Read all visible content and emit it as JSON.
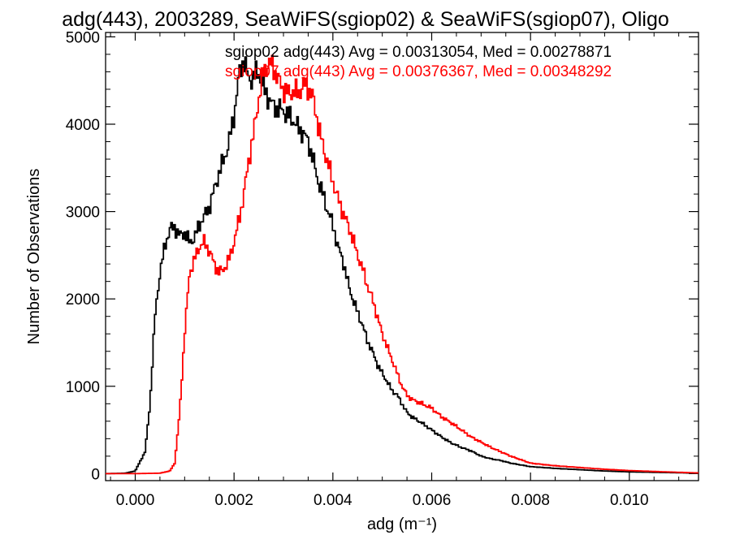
{
  "chart_data": {
    "type": "line",
    "title": "adg(443), 2003289, SeaWiFS(sgiop02) & SeaWiFS(sgiop07), Oligo",
    "xlabel": "adg (m⁻¹)",
    "ylabel": "Number of Observations",
    "xlim": [
      -0.0006,
      0.0114
    ],
    "ylim": [
      -80,
      5050
    ],
    "xticks": [
      0.0,
      0.002,
      0.004,
      0.006,
      0.008,
      0.01
    ],
    "xtick_labels": [
      "0.000",
      "0.002",
      "0.004",
      "0.006",
      "0.008",
      "0.010"
    ],
    "yticks": [
      0,
      1000,
      2000,
      3000,
      4000,
      5000
    ],
    "ytick_labels": [
      "0",
      "1000",
      "2000",
      "3000",
      "4000",
      "5000"
    ],
    "legend_placement": "top-right",
    "series": [
      {
        "name": "sgiop02",
        "legend": "sgiop02 adg(443) Avg = 0.00313054, Med = 0.00278871",
        "color": "#000000",
        "x": [
          -0.0006,
          -0.0002,
          0.0,
          0.0002,
          0.0003,
          0.0004,
          0.0005,
          0.0006,
          0.0007,
          0.0008,
          0.0009,
          0.001,
          0.0011,
          0.0012,
          0.0013,
          0.0014,
          0.0015,
          0.0016,
          0.0017,
          0.0018,
          0.0019,
          0.002,
          0.0021,
          0.0022,
          0.0023,
          0.0024,
          0.0025,
          0.0026,
          0.0027,
          0.0028,
          0.0029,
          0.003,
          0.0031,
          0.0032,
          0.0033,
          0.0034,
          0.0035,
          0.0036,
          0.0037,
          0.0038,
          0.0039,
          0.004,
          0.0041,
          0.0042,
          0.0043,
          0.0044,
          0.0045,
          0.0046,
          0.0047,
          0.0048,
          0.0049,
          0.005,
          0.0051,
          0.0052,
          0.0053,
          0.0054,
          0.0055,
          0.0056,
          0.0058,
          0.006,
          0.0062,
          0.0064,
          0.0066,
          0.0068,
          0.007,
          0.0072,
          0.0074,
          0.0076,
          0.0078,
          0.008,
          0.0085,
          0.009,
          0.0095,
          0.01,
          0.0105,
          0.011,
          0.0114
        ],
        "y": [
          0,
          5,
          30,
          250,
          800,
          1800,
          2300,
          2600,
          2800,
          2820,
          2720,
          2760,
          2650,
          2700,
          2850,
          2950,
          3050,
          3250,
          3450,
          3600,
          3800,
          4100,
          4550,
          4750,
          4500,
          4550,
          4600,
          4400,
          4300,
          4200,
          4180,
          4150,
          4100,
          4050,
          3950,
          3900,
          3800,
          3600,
          3350,
          3200,
          3000,
          2850,
          2600,
          2450,
          2200,
          2000,
          1850,
          1700,
          1520,
          1400,
          1250,
          1150,
          1050,
          950,
          900,
          800,
          700,
          650,
          580,
          500,
          420,
          350,
          300,
          260,
          200,
          170,
          150,
          120,
          100,
          80,
          60,
          45,
          30,
          20,
          15,
          10,
          5
        ]
      },
      {
        "name": "sgiop07",
        "legend": "sgiop07 adg(443) Avg = 0.00376367, Med = 0.00348292",
        "color": "#ff0000",
        "x": [
          -0.0006,
          0.0,
          0.0005,
          0.0007,
          0.0008,
          0.0009,
          0.001,
          0.0011,
          0.0012,
          0.0013,
          0.0014,
          0.0015,
          0.0016,
          0.0017,
          0.0018,
          0.0019,
          0.002,
          0.0021,
          0.0022,
          0.0023,
          0.0024,
          0.0025,
          0.0026,
          0.0027,
          0.0028,
          0.0029,
          0.003,
          0.0031,
          0.0032,
          0.0033,
          0.0034,
          0.0035,
          0.0036,
          0.0037,
          0.0038,
          0.0039,
          0.004,
          0.0041,
          0.0042,
          0.0043,
          0.0044,
          0.0045,
          0.0046,
          0.0047,
          0.0048,
          0.0049,
          0.005,
          0.0051,
          0.0052,
          0.0053,
          0.0054,
          0.0055,
          0.0056,
          0.0058,
          0.006,
          0.0062,
          0.0064,
          0.0066,
          0.0068,
          0.007,
          0.0072,
          0.0074,
          0.0076,
          0.0078,
          0.008,
          0.0085,
          0.009,
          0.0095,
          0.01,
          0.0105,
          0.011,
          0.0114
        ],
        "y": [
          0,
          0,
          5,
          30,
          120,
          700,
          1600,
          2300,
          2450,
          2600,
          2650,
          2550,
          2400,
          2300,
          2350,
          2450,
          2650,
          2900,
          3200,
          3600,
          3900,
          4300,
          4600,
          4700,
          4650,
          4500,
          4400,
          4350,
          4380,
          4350,
          4450,
          4420,
          4300,
          4000,
          3750,
          3550,
          3350,
          3150,
          3000,
          2850,
          2700,
          2500,
          2350,
          2150,
          2000,
          1800,
          1600,
          1450,
          1300,
          1150,
          1000,
          900,
          850,
          800,
          750,
          650,
          580,
          500,
          420,
          360,
          300,
          250,
          200,
          160,
          120,
          90,
          70,
          50,
          35,
          25,
          15,
          8
        ]
      }
    ]
  }
}
